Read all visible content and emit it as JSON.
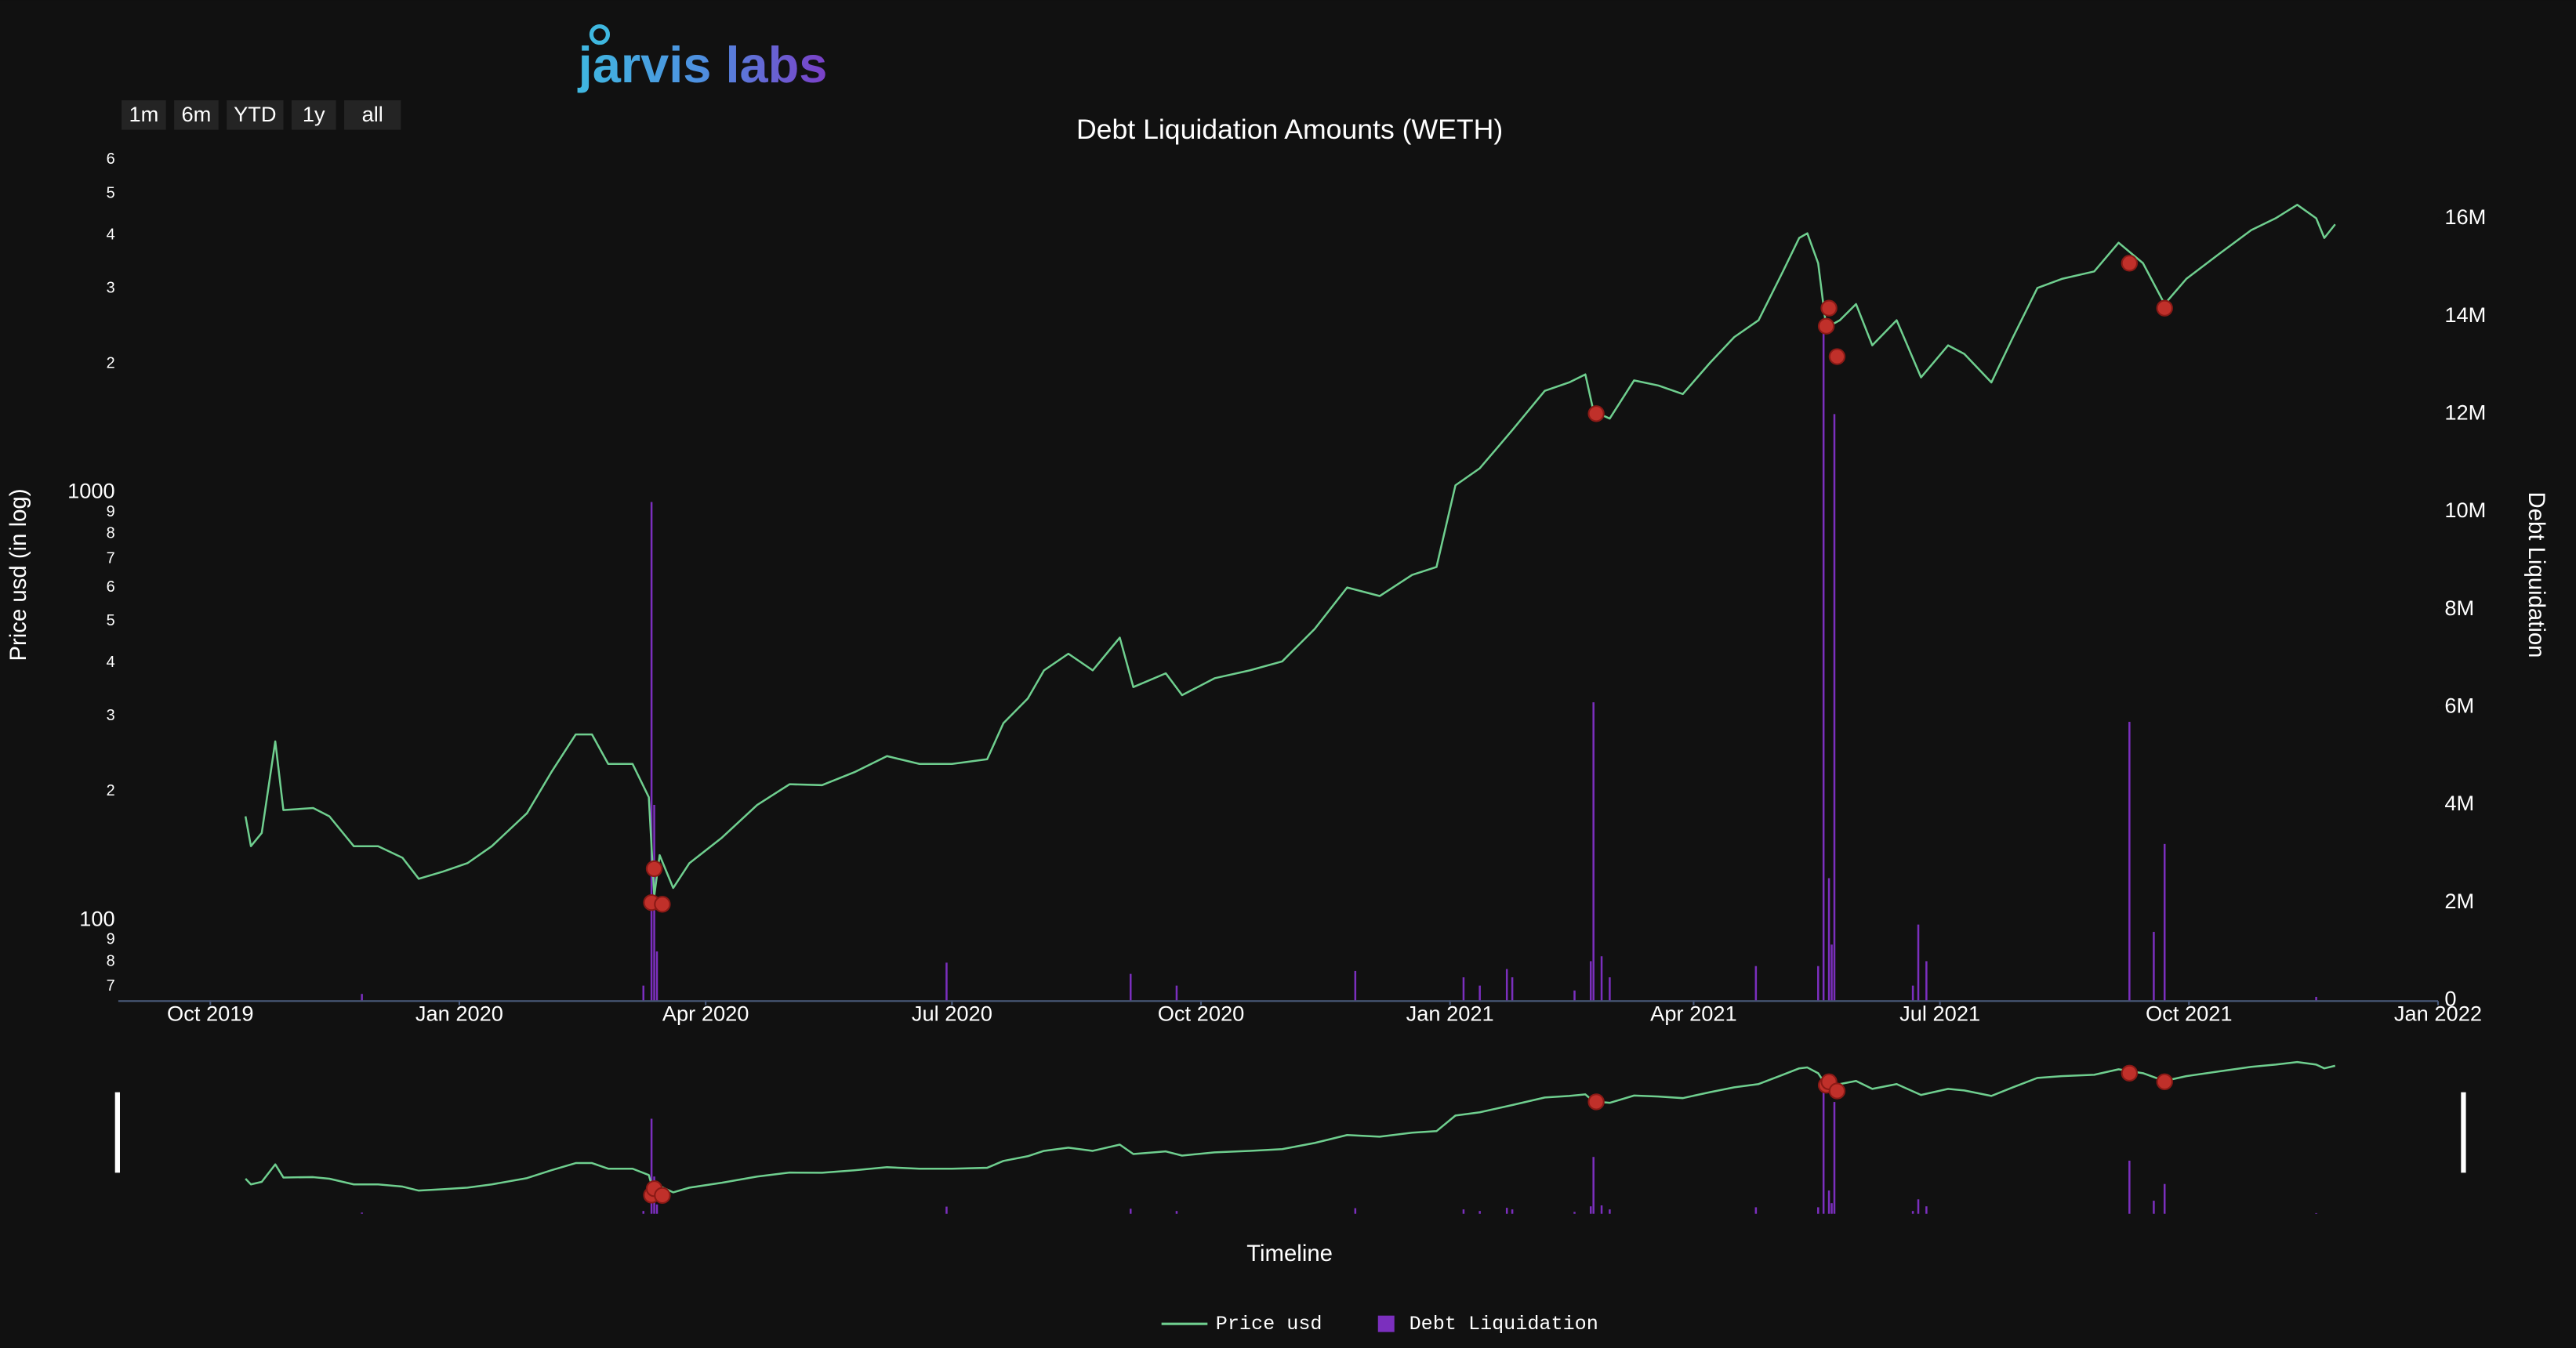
{
  "logo": {
    "text": "jarvis labs"
  },
  "range_buttons": [
    "1m",
    "6m",
    "YTD",
    "1y",
    "all"
  ],
  "chart_data": {
    "type": "line",
    "title": "Debt Liquidation Amounts (WETH)",
    "x_label": "Timeline",
    "y_label": "Price usd (in log)",
    "y2_label": "Debt Liquidation",
    "y_log": true,
    "grid": false,
    "legend": "bottom",
    "xlim": [
      "2019-08-28",
      "2022-01-01"
    ],
    "xticks": [
      {
        "value": "2019-10-01",
        "label": "Oct 2019"
      },
      {
        "value": "2020-01-01",
        "label": "Jan 2020"
      },
      {
        "value": "2020-04-01",
        "label": "Apr 2020"
      },
      {
        "value": "2020-07-01",
        "label": "Jul 2020"
      },
      {
        "value": "2020-10-01",
        "label": "Oct 2020"
      },
      {
        "value": "2021-01-01",
        "label": "Jan 2021"
      },
      {
        "value": "2021-04-01",
        "label": "Apr 2021"
      },
      {
        "value": "2021-07-01",
        "label": "Jul 2021"
      },
      {
        "value": "2021-10-01",
        "label": "Oct 2021"
      },
      {
        "value": "2022-01-01",
        "label": "Jan 2022"
      }
    ],
    "ylim": [
      65,
      6400
    ],
    "yticks": [
      {
        "value": 70,
        "label": "7"
      },
      {
        "value": 80,
        "label": "8"
      },
      {
        "value": 90,
        "label": "9"
      },
      100,
      {
        "value": 200,
        "label": "2"
      },
      {
        "value": 300,
        "label": "3"
      },
      {
        "value": 400,
        "label": "4"
      },
      {
        "value": 500,
        "label": "5"
      },
      {
        "value": 600,
        "label": "6"
      },
      {
        "value": 700,
        "label": "7"
      },
      {
        "value": 800,
        "label": "8"
      },
      {
        "value": 900,
        "label": "9"
      },
      1000,
      {
        "value": 2000,
        "label": "2"
      },
      {
        "value": 3000,
        "label": "3"
      },
      {
        "value": 4000,
        "label": "4"
      },
      {
        "value": 5000,
        "label": "5"
      },
      {
        "value": 6000,
        "label": "6"
      }
    ],
    "y2lim": [
      0,
      17450000
    ],
    "y2ticks": [
      0,
      {
        "value": 2000000,
        "label": "2M"
      },
      {
        "value": 4000000,
        "label": "4M"
      },
      {
        "value": 6000000,
        "label": "6M"
      },
      {
        "value": 8000000,
        "label": "8M"
      },
      {
        "value": 10000000,
        "label": "10M"
      },
      {
        "value": 12000000,
        "label": "12M"
      },
      {
        "value": 14000000,
        "label": "14M"
      },
      {
        "value": 16000000,
        "label": "16M"
      }
    ],
    "series": [
      {
        "name": "Price usd",
        "color": "#6fcf8f",
        "type": "line",
        "x": [
          "2019-10-14",
          "2019-10-16",
          "2019-10-20",
          "2019-10-25",
          "2019-10-28",
          "2019-11-08",
          "2019-11-14",
          "2019-11-23",
          "2019-12-02",
          "2019-12-11",
          "2019-12-17",
          "2019-12-26",
          "2020-01-04",
          "2020-01-13",
          "2020-01-26",
          "2020-02-04",
          "2020-02-13",
          "2020-02-19",
          "2020-02-25",
          "2020-03-05",
          "2020-03-11",
          "2020-03-13",
          "2020-03-15",
          "2020-03-20",
          "2020-03-26",
          "2020-04-07",
          "2020-04-20",
          "2020-05-02",
          "2020-05-14",
          "2020-05-26",
          "2020-06-07",
          "2020-06-19",
          "2020-07-01",
          "2020-07-14",
          "2020-07-20",
          "2020-07-29",
          "2020-08-04",
          "2020-08-13",
          "2020-08-22",
          "2020-09-01",
          "2020-09-06",
          "2020-09-18",
          "2020-09-24",
          "2020-10-06",
          "2020-10-19",
          "2020-10-31",
          "2020-11-12",
          "2020-11-24",
          "2020-12-06",
          "2020-12-18",
          "2020-12-27",
          "2021-01-03",
          "2021-01-12",
          "2021-01-24",
          "2021-02-05",
          "2021-02-14",
          "2021-02-20",
          "2021-02-23",
          "2021-03-01",
          "2021-03-10",
          "2021-03-19",
          "2021-03-28",
          "2021-04-07",
          "2021-04-16",
          "2021-04-25",
          "2021-05-04",
          "2021-05-10",
          "2021-05-13",
          "2021-05-17",
          "2021-05-20",
          "2021-05-25",
          "2021-05-31",
          "2021-06-06",
          "2021-06-15",
          "2021-06-24",
          "2021-07-04",
          "2021-07-10",
          "2021-07-20",
          "2021-07-28",
          "2021-08-06",
          "2021-08-15",
          "2021-08-27",
          "2021-09-05",
          "2021-09-14",
          "2021-09-22",
          "2021-09-30",
          "2021-10-12",
          "2021-10-24",
          "2021-11-02",
          "2021-11-10",
          "2021-11-17",
          "2021-11-20",
          "2021-11-24"
        ],
        "values": [
          175,
          149,
          160,
          262,
          181,
          183,
          175,
          149,
          149,
          140,
          125,
          130,
          136,
          149,
          178,
          222,
          272,
          272,
          232,
          232,
          194,
          114,
          142,
          119,
          136,
          156,
          186,
          208,
          207,
          222,
          242,
          232,
          232,
          238,
          289,
          330,
          384,
          420,
          384,
          458,
          351,
          378,
          336,
          368,
          384,
          403,
          480,
          600,
          573,
          642,
          670,
          1040,
          1140,
          1400,
          1730,
          1810,
          1890,
          1550,
          1490,
          1830,
          1780,
          1700,
          2010,
          2310,
          2530,
          3290,
          3940,
          4040,
          3440,
          2430,
          2530,
          2760,
          2210,
          2530,
          1860,
          2210,
          2110,
          1810,
          2310,
          3010,
          3160,
          3290,
          3840,
          3440,
          2760,
          3160,
          3610,
          4110,
          4380,
          4710,
          4380,
          3940,
          4240
        ]
      },
      {
        "name": "Debt Liquidation",
        "color": "#7b2fbe",
        "type": "bar",
        "axis": "y2",
        "x": [
          "2019-11-26",
          "2020-03-09",
          "2020-03-12",
          "2020-03-13",
          "2020-03-14",
          "2020-06-29",
          "2020-09-05",
          "2020-09-22",
          "2020-11-27",
          "2021-01-06",
          "2021-01-12",
          "2021-01-22",
          "2021-01-24",
          "2021-02-16",
          "2021-02-22",
          "2021-02-23",
          "2021-02-26",
          "2021-03-01",
          "2021-04-24",
          "2021-05-17",
          "2021-05-19",
          "2021-05-21",
          "2021-05-22",
          "2021-05-23",
          "2021-06-21",
          "2021-06-23",
          "2021-06-26",
          "2021-09-09",
          "2021-09-18",
          "2021-09-22",
          "2021-11-17"
        ],
        "values": [
          130000,
          300000,
          10200000,
          4000000,
          1000000,
          770000,
          540000,
          300000,
          600000,
          470000,
          300000,
          640000,
          470000,
          200000,
          800000,
          6100000,
          900000,
          470000,
          700000,
          700000,
          13700000,
          2500000,
          1140000,
          12000000,
          300000,
          1550000,
          800000,
          5700000,
          1400000,
          3200000,
          70000
        ]
      }
    ],
    "markers": {
      "color": "#c0302a",
      "x": [
        "2020-03-12",
        "2020-03-13",
        "2020-03-16",
        "2021-02-24",
        "2021-05-20",
        "2021-05-21",
        "2021-05-24",
        "2021-09-09",
        "2021-09-22"
      ],
      "values": [
        110,
        132,
        109,
        1530,
        2450,
        2700,
        2080,
        3440,
        2700
      ]
    }
  }
}
